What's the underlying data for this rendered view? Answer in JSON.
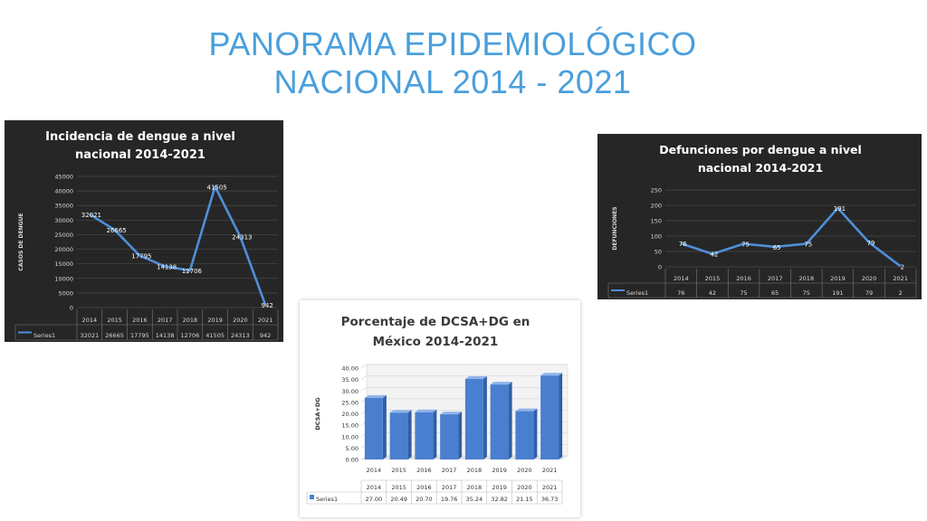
{
  "slide": {
    "title_line1": "PANORAMA EPIDEMIOLÓGICO",
    "title_line2": "NACIONAL  2014 - 2021"
  },
  "chart_data": [
    {
      "type": "line",
      "title_lines": [
        "Incidencia de dengue a nivel",
        "nacional 2014-2021"
      ],
      "ylabel": "CASOS DE DENGUE",
      "categories": [
        "2014",
        "2015",
        "2016",
        "2017",
        "2018",
        "2019",
        "2020",
        "2021"
      ],
      "yticks": [
        "45000",
        "40000",
        "35000",
        "30000",
        "25000",
        "20000",
        "15000",
        "10000",
        "5000",
        "0"
      ],
      "ylim": [
        0,
        45000
      ],
      "series": [
        {
          "name": "Series1",
          "values": [
            32021,
            26665,
            17795,
            14138,
            12706,
            41505,
            24313,
            942
          ]
        }
      ],
      "table": true,
      "color": "#4f8fd8"
    },
    {
      "type": "line",
      "title_lines": [
        "Defunciones por dengue a nivel",
        "nacional 2014-2021"
      ],
      "ylabel": "DEFUNCIONES",
      "categories": [
        "2014",
        "2015",
        "2016",
        "2017",
        "2018",
        "2019",
        "2020",
        "2021"
      ],
      "yticks": [
        "250",
        "200",
        "150",
        "100",
        "50",
        "0"
      ],
      "ylim": [
        0,
        250
      ],
      "series": [
        {
          "name": "Series1",
          "values": [
            76,
            42,
            75,
            65,
            75,
            191,
            79,
            2
          ]
        }
      ],
      "table": true,
      "color": "#4f8fd8"
    },
    {
      "type": "bar",
      "title_lines": [
        "Porcentaje de DCSA+DG en",
        "México 2014-2021"
      ],
      "ylabel": "DCSA+DG",
      "categories": [
        "2014",
        "2015",
        "2016",
        "2017",
        "2018",
        "2019",
        "2020",
        "2021"
      ],
      "yticks": [
        "40.00",
        "35.00",
        "30.00",
        "25.00",
        "20.00",
        "15.00",
        "10.00",
        "5.00",
        "0.00"
      ],
      "ylim": [
        0,
        40
      ],
      "series": [
        {
          "name": "Series1",
          "values": [
            27.0,
            20.49,
            20.7,
            19.76,
            35.24,
            32.82,
            21.15,
            36.73
          ]
        }
      ],
      "table_values": [
        "27.00",
        "20.49",
        "20.70",
        "19.76",
        "35.24",
        "32.82",
        "21.15",
        "36.73"
      ],
      "table": true,
      "color": "#4a7fd0"
    }
  ]
}
